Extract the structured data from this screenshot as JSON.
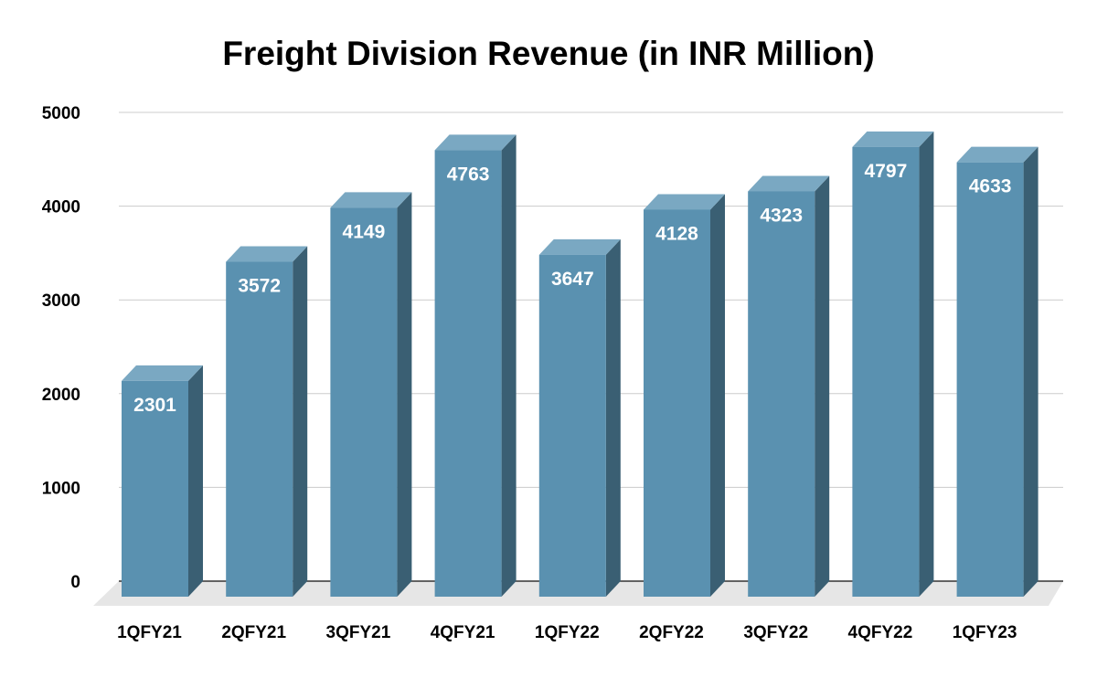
{
  "chart_data": {
    "type": "bar",
    "title": "Freight Division Revenue (in INR Million)",
    "xlabel": "",
    "ylabel": "",
    "categories": [
      "1QFY21",
      "2QFY21",
      "3QFY21",
      "4QFY21",
      "1QFY22",
      "2QFY22",
      "3QFY22",
      "4QFY22",
      "1QFY23"
    ],
    "values": [
      2301,
      3572,
      4149,
      4763,
      3647,
      4128,
      4323,
      4797,
      4633
    ],
    "ylim": [
      0,
      5000
    ],
    "yticks": [
      0,
      1000,
      2000,
      3000,
      4000,
      5000
    ],
    "grid": true,
    "legend": "none",
    "colors": {
      "bar_front": "#5a91b0",
      "bar_side": "#3a5f73",
      "bar_top": "#7aa8c2",
      "floor": "#e6e6e6",
      "grid": "#cccccc",
      "axis": "#333333"
    }
  }
}
